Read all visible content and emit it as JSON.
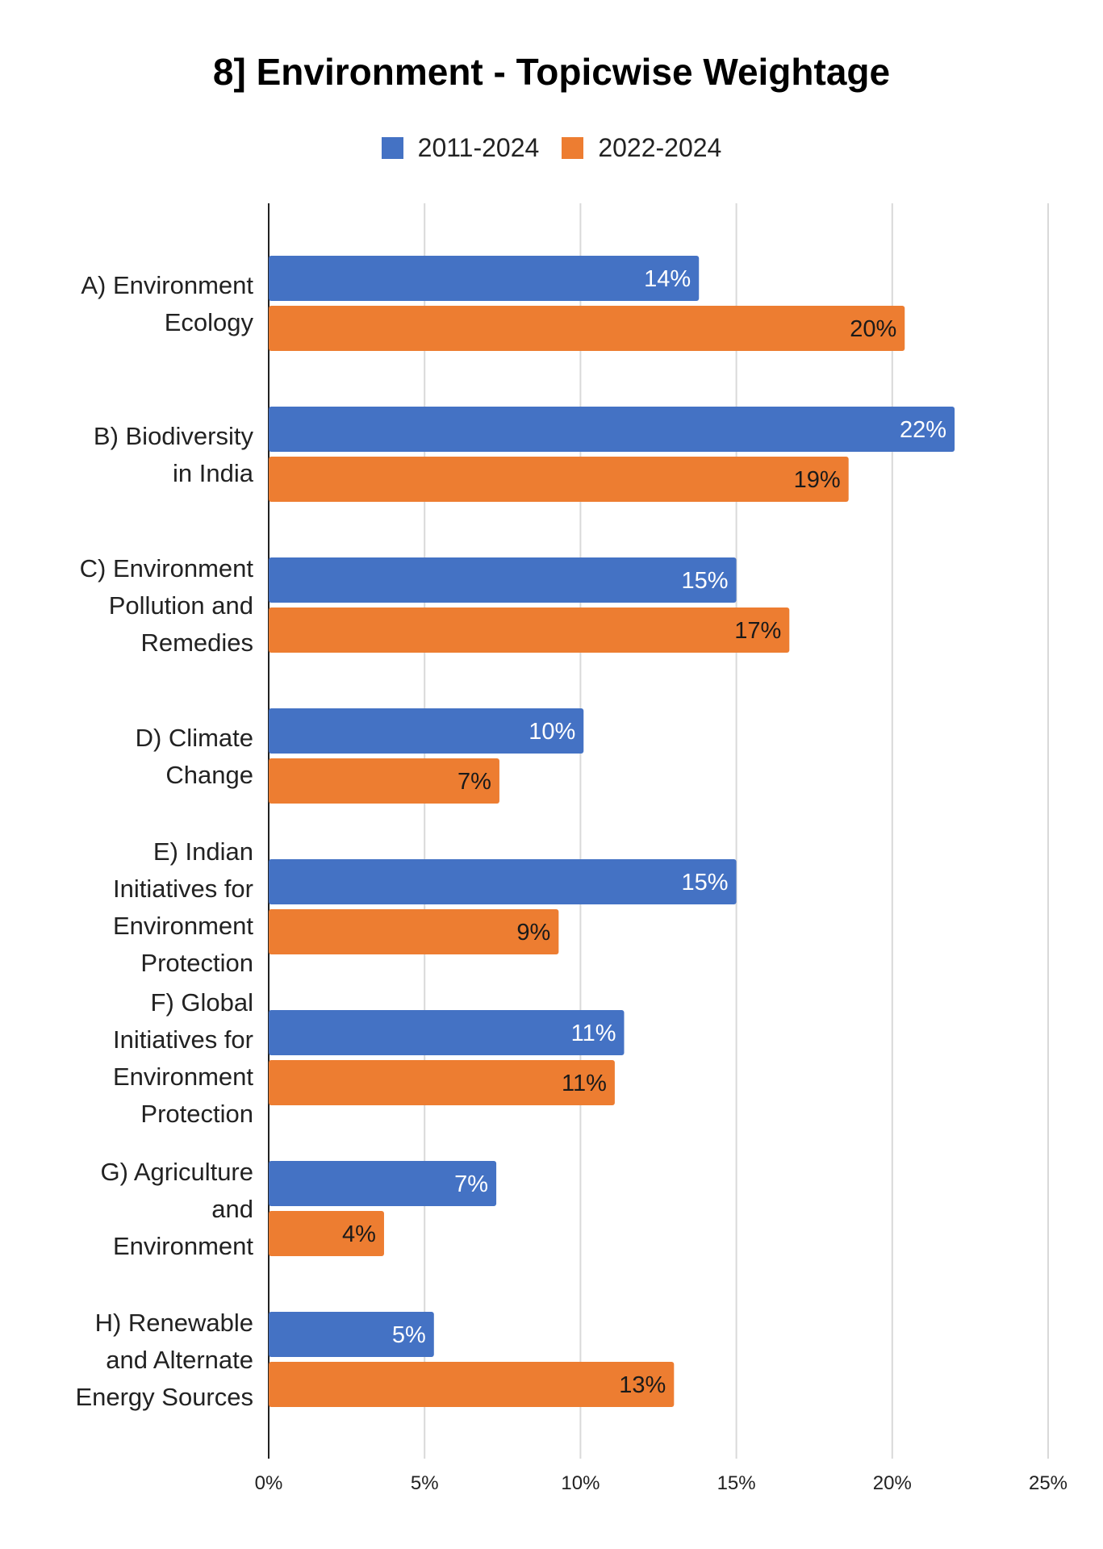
{
  "chart_data": {
    "type": "bar",
    "orientation": "horizontal",
    "title": "8] Environment - Topicwise Weightage",
    "xlabel": "",
    "ylabel": "",
    "xlim": [
      0,
      25
    ],
    "ticks": [
      0,
      5,
      10,
      15,
      20,
      25
    ],
    "tick_labels": [
      "0%",
      "5%",
      "10%",
      "15%",
      "20%",
      "25%"
    ],
    "grid": true,
    "legend_position": "top-center",
    "categories": [
      [
        "A) Environment",
        "Ecology"
      ],
      [
        "B) Biodiversity",
        "in India"
      ],
      [
        "C) Environment",
        "Pollution and",
        "Remedies"
      ],
      [
        "D) Climate",
        "Change"
      ],
      [
        "E) Indian",
        "Initiatives for",
        "Environment",
        "Protection"
      ],
      [
        "F) Global",
        "Initiatives for",
        "Environment",
        "Protection"
      ],
      [
        "G) Agriculture",
        "and",
        "Environment"
      ],
      [
        "H) Renewable",
        "and Alternate",
        "Energy Sources"
      ]
    ],
    "series": [
      {
        "name": "2011-2024",
        "color": "#4472C4",
        "label_color": "#ffffff",
        "values": [
          13.8,
          22.0,
          15.0,
          10.1,
          15.0,
          11.4,
          7.3,
          5.3
        ],
        "data_labels": [
          "14%",
          "22%",
          "15%",
          "10%",
          "15%",
          "11%",
          "7%",
          "5%"
        ]
      },
      {
        "name": "2022-2024",
        "color": "#ED7D31",
        "label_color": "#1a1a1a",
        "values": [
          20.4,
          18.6,
          16.7,
          7.4,
          9.3,
          11.1,
          3.7,
          13.0
        ],
        "data_labels": [
          "20%",
          "19%",
          "17%",
          "7%",
          "9%",
          "11%",
          "4%",
          "13%"
        ]
      }
    ]
  }
}
